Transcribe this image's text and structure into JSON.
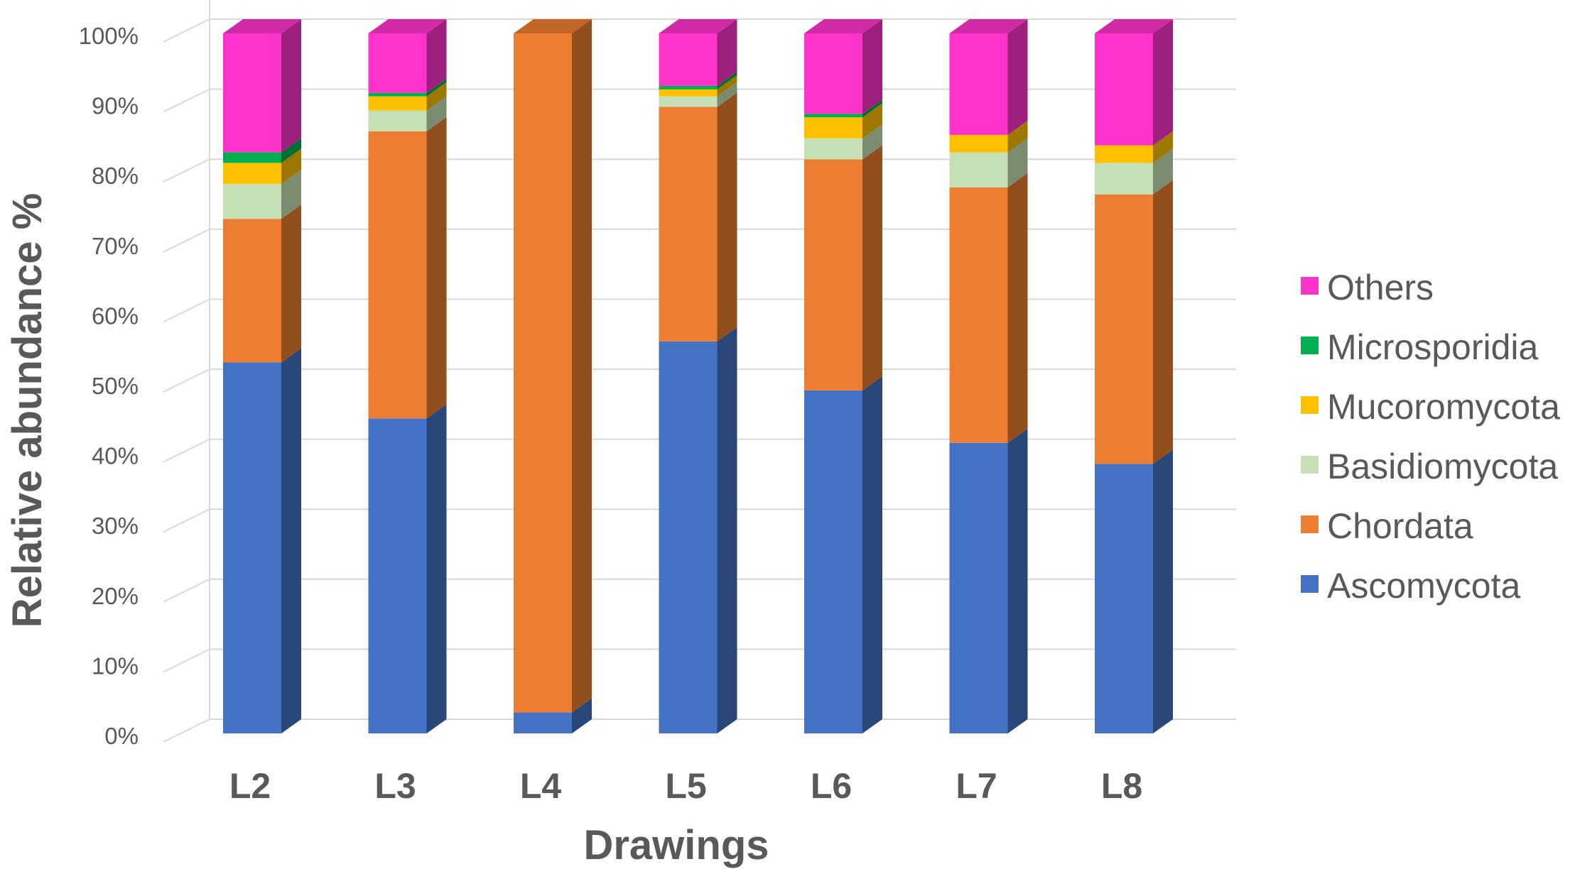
{
  "chart_data": {
    "type": "bar",
    "stacked": true,
    "three_d": true,
    "xlabel": "Drawings",
    "ylabel": "Relative abundance %",
    "ylim": [
      0,
      100
    ],
    "yticks": [
      "0%",
      "10%",
      "20%",
      "30%",
      "40%",
      "50%",
      "60%",
      "70%",
      "80%",
      "90%",
      "100%"
    ],
    "grid": true,
    "legend_position": "right",
    "categories": [
      "L2",
      "L3",
      "L4",
      "L5",
      "L6",
      "L7",
      "L8"
    ],
    "series": [
      {
        "name": "Ascomycota",
        "color": "#4472C4",
        "values": [
          53,
          45,
          3,
          56,
          49,
          41.5,
          38.5
        ]
      },
      {
        "name": "Chordata",
        "color": "#ED7D31",
        "values": [
          20.5,
          41,
          97,
          33.5,
          33,
          36.5,
          38.5
        ]
      },
      {
        "name": "Basidiomycota",
        "color": "#C5E0B4",
        "values": [
          5,
          3,
          0,
          1.5,
          3,
          5,
          4.5
        ]
      },
      {
        "name": "Mucoromycota",
        "color": "#FFC000",
        "values": [
          3,
          2,
          0,
          1,
          3,
          2.5,
          2.5
        ]
      },
      {
        "name": "Microsporidia",
        "color": "#00B050",
        "values": [
          1.5,
          0.5,
          0,
          0.5,
          0.5,
          0,
          0
        ]
      },
      {
        "name": "Others",
        "color": "#FF33CC",
        "values": [
          17,
          8.5,
          0,
          7.5,
          11.5,
          14.5,
          16
        ]
      }
    ],
    "legend_order": [
      "Others",
      "Microsporidia",
      "Mucoromycota",
      "Basidiomycota",
      "Chordata",
      "Ascomycota"
    ]
  }
}
